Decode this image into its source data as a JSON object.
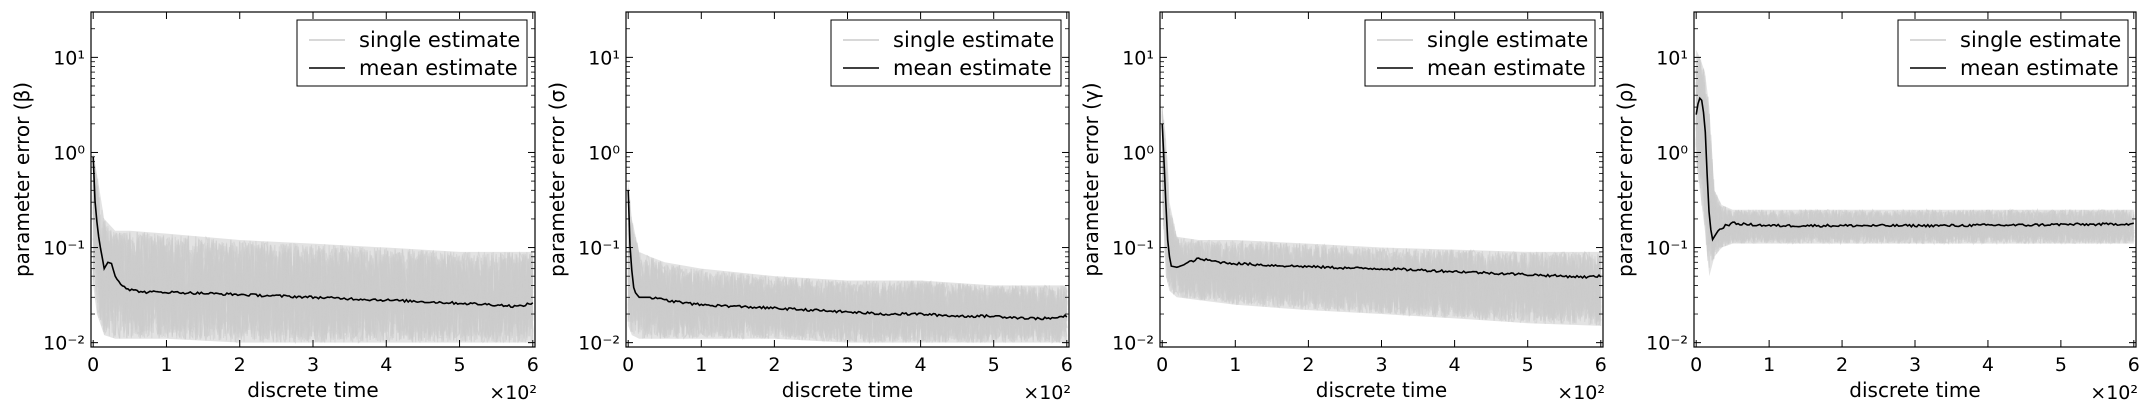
{
  "figure": {
    "legend_labels": [
      "single estimate",
      "mean estimate"
    ],
    "colors": {
      "single": "#cccccc",
      "mean": "#000000",
      "frame": "#000000"
    }
  },
  "chart_data": [
    {
      "type": "line",
      "title": "",
      "xlabel": "discrete time",
      "ylabel": "parameter error (β)",
      "y_scale": "log",
      "xlim": [
        -0.03,
        6.03
      ],
      "ylim": [
        0.009,
        30
      ],
      "x_scale_label": "×10²",
      "xticks": [
        0,
        1,
        2,
        3,
        4,
        5,
        6
      ],
      "yticks": [
        {
          "v": 0.01,
          "label": "10⁻²"
        },
        {
          "v": 0.1,
          "label": "10⁻¹"
        },
        {
          "v": 1,
          "label": "10⁰"
        },
        {
          "v": 10,
          "label": "10¹"
        }
      ],
      "grid": false,
      "legend": "top-right",
      "series": [
        {
          "name": "single estimate",
          "kind": "band",
          "x": [
            0,
            0.05,
            0.15,
            0.3,
            0.5,
            1,
            2,
            3,
            4,
            5,
            6
          ],
          "y_low": [
            0.04,
            0.02,
            0.012,
            0.011,
            0.011,
            0.011,
            0.01,
            0.01,
            0.01,
            0.01,
            0.01
          ],
          "y_high": [
            1.0,
            0.6,
            0.2,
            0.15,
            0.15,
            0.14,
            0.12,
            0.11,
            0.1,
            0.09,
            0.09
          ]
        },
        {
          "name": "mean estimate",
          "kind": "line",
          "x": [
            0,
            0.03,
            0.08,
            0.15,
            0.2,
            0.25,
            0.3,
            0.4,
            0.5,
            0.7,
            1.0,
            1.5,
            2.0,
            2.5,
            3.0,
            3.5,
            4.0,
            4.5,
            5.0,
            5.5,
            5.8,
            6.0
          ],
          "y": [
            0.9,
            0.25,
            0.12,
            0.06,
            0.07,
            0.068,
            0.05,
            0.04,
            0.036,
            0.034,
            0.034,
            0.033,
            0.032,
            0.031,
            0.03,
            0.029,
            0.028,
            0.027,
            0.026,
            0.025,
            0.024,
            0.026
          ]
        }
      ]
    },
    {
      "type": "line",
      "title": "",
      "xlabel": "discrete time",
      "ylabel": "parameter error (σ)",
      "y_scale": "log",
      "xlim": [
        -0.03,
        6.03
      ],
      "ylim": [
        0.009,
        30
      ],
      "x_scale_label": "×10²",
      "xticks": [
        0,
        1,
        2,
        3,
        4,
        5,
        6
      ],
      "yticks": [
        {
          "v": 0.01,
          "label": "10⁻²"
        },
        {
          "v": 0.1,
          "label": "10⁻¹"
        },
        {
          "v": 1,
          "label": "10⁰"
        },
        {
          "v": 10,
          "label": "10¹"
        }
      ],
      "grid": false,
      "legend": "top-right",
      "series": [
        {
          "name": "single estimate",
          "kind": "band",
          "x": [
            0,
            0.05,
            0.15,
            0.3,
            0.5,
            1,
            2,
            3,
            4,
            5,
            6
          ],
          "y_low": [
            0.015,
            0.012,
            0.011,
            0.011,
            0.011,
            0.011,
            0.011,
            0.01,
            0.01,
            0.01,
            0.01
          ],
          "y_high": [
            0.5,
            0.2,
            0.09,
            0.08,
            0.07,
            0.06,
            0.05,
            0.045,
            0.045,
            0.04,
            0.04
          ]
        },
        {
          "name": "mean estimate",
          "kind": "line",
          "x": [
            0,
            0.03,
            0.08,
            0.15,
            0.3,
            0.5,
            0.8,
            1.0,
            1.5,
            2.0,
            2.5,
            3.0,
            3.5,
            4.0,
            4.5,
            5.0,
            5.5,
            5.8,
            6.0
          ],
          "y": [
            0.4,
            0.08,
            0.035,
            0.03,
            0.03,
            0.028,
            0.026,
            0.025,
            0.024,
            0.023,
            0.022,
            0.021,
            0.02,
            0.02,
            0.019,
            0.019,
            0.018,
            0.018,
            0.019
          ]
        }
      ]
    },
    {
      "type": "line",
      "title": "",
      "xlabel": "discrete time",
      "ylabel": "parameter error (γ)",
      "y_scale": "log",
      "xlim": [
        -0.03,
        6.03
      ],
      "ylim": [
        0.009,
        30
      ],
      "x_scale_label": "×10²",
      "xticks": [
        0,
        1,
        2,
        3,
        4,
        5,
        6
      ],
      "yticks": [
        {
          "v": 0.01,
          "label": "10⁻²"
        },
        {
          "v": 0.1,
          "label": "10⁻¹"
        },
        {
          "v": 1,
          "label": "10⁰"
        },
        {
          "v": 10,
          "label": "10¹"
        }
      ],
      "grid": false,
      "legend": "top-right",
      "series": [
        {
          "name": "single estimate",
          "kind": "band",
          "x": [
            0,
            0.05,
            0.1,
            0.2,
            0.5,
            1,
            2,
            3,
            4,
            5,
            6
          ],
          "y_low": [
            0.3,
            0.05,
            0.035,
            0.03,
            0.028,
            0.025,
            0.022,
            0.02,
            0.018,
            0.016,
            0.015
          ],
          "y_high": [
            3.0,
            1.5,
            0.3,
            0.13,
            0.12,
            0.12,
            0.11,
            0.1,
            0.095,
            0.09,
            0.09
          ]
        },
        {
          "name": "mean estimate",
          "kind": "line",
          "x": [
            0,
            0.02,
            0.05,
            0.08,
            0.12,
            0.2,
            0.3,
            0.4,
            0.5,
            0.6,
            0.8,
            1.0,
            1.5,
            2.0,
            2.5,
            3.0,
            3.5,
            4.0,
            4.5,
            5.0,
            5.5,
            5.8,
            6.0
          ],
          "y": [
            2.0,
            1.0,
            0.3,
            0.1,
            0.064,
            0.062,
            0.066,
            0.072,
            0.076,
            0.074,
            0.07,
            0.068,
            0.065,
            0.063,
            0.061,
            0.06,
            0.058,
            0.056,
            0.054,
            0.052,
            0.05,
            0.049,
            0.05
          ]
        }
      ]
    },
    {
      "type": "line",
      "title": "",
      "xlabel": "discrete time",
      "ylabel": "parameter error (ρ)",
      "y_scale": "log",
      "xlim": [
        -0.03,
        6.03
      ],
      "ylim": [
        0.009,
        30
      ],
      "x_scale_label": "×10²",
      "xticks": [
        0,
        1,
        2,
        3,
        4,
        5,
        6
      ],
      "yticks": [
        {
          "v": 0.01,
          "label": "10⁻²"
        },
        {
          "v": 0.1,
          "label": "10⁻¹"
        },
        {
          "v": 1,
          "label": "10⁰"
        },
        {
          "v": 10,
          "label": "10¹"
        }
      ],
      "grid": false,
      "legend": "top-right",
      "series": [
        {
          "name": "single estimate",
          "kind": "band",
          "x": [
            0,
            0.05,
            0.12,
            0.18,
            0.25,
            0.35,
            0.5,
            1,
            2,
            3,
            4,
            5,
            6
          ],
          "y_low": [
            0.8,
            0.4,
            0.15,
            0.05,
            0.08,
            0.1,
            0.11,
            0.11,
            0.11,
            0.11,
            0.11,
            0.11,
            0.11
          ],
          "y_high": [
            12,
            10,
            7,
            3,
            0.4,
            0.28,
            0.25,
            0.25,
            0.25,
            0.25,
            0.25,
            0.25,
            0.25
          ]
        },
        {
          "name": "mean estimate",
          "kind": "line",
          "x": [
            0,
            0.04,
            0.08,
            0.12,
            0.15,
            0.18,
            0.22,
            0.3,
            0.4,
            0.5,
            0.7,
            1.0,
            1.5,
            2.0,
            2.5,
            3.0,
            3.5,
            4.0,
            4.5,
            5.0,
            5.5,
            6.0
          ],
          "y": [
            2.5,
            3.8,
            3.5,
            2.0,
            0.6,
            0.2,
            0.12,
            0.15,
            0.17,
            0.18,
            0.175,
            0.17,
            0.17,
            0.17,
            0.17,
            0.17,
            0.17,
            0.172,
            0.172,
            0.175,
            0.175,
            0.178
          ]
        }
      ]
    }
  ]
}
